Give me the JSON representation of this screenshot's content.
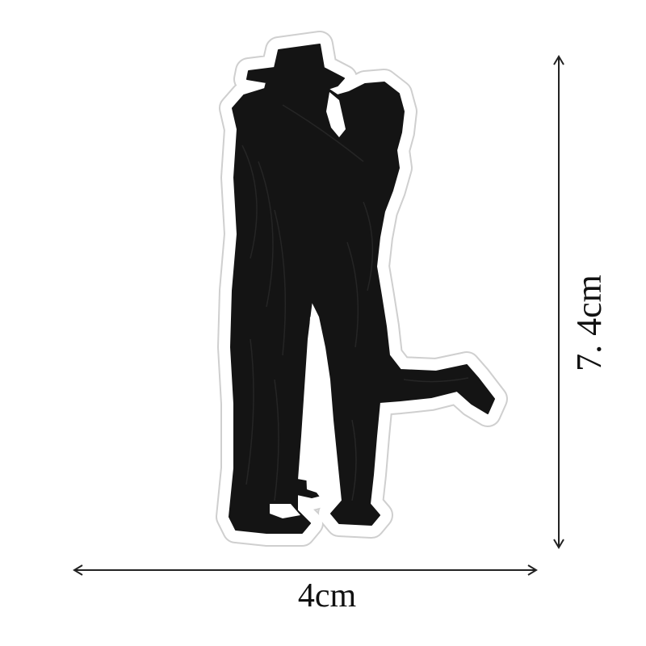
{
  "product": {
    "subject": "embroidered-patch",
    "colors": {
      "patch_border": "#ffffff",
      "patch_edge": "#cfcfcf",
      "silhouette": "#141414",
      "dimension_lines": "#222222"
    }
  },
  "dimensions": {
    "width_label": "4cm",
    "height_label": "7. 4cm"
  }
}
